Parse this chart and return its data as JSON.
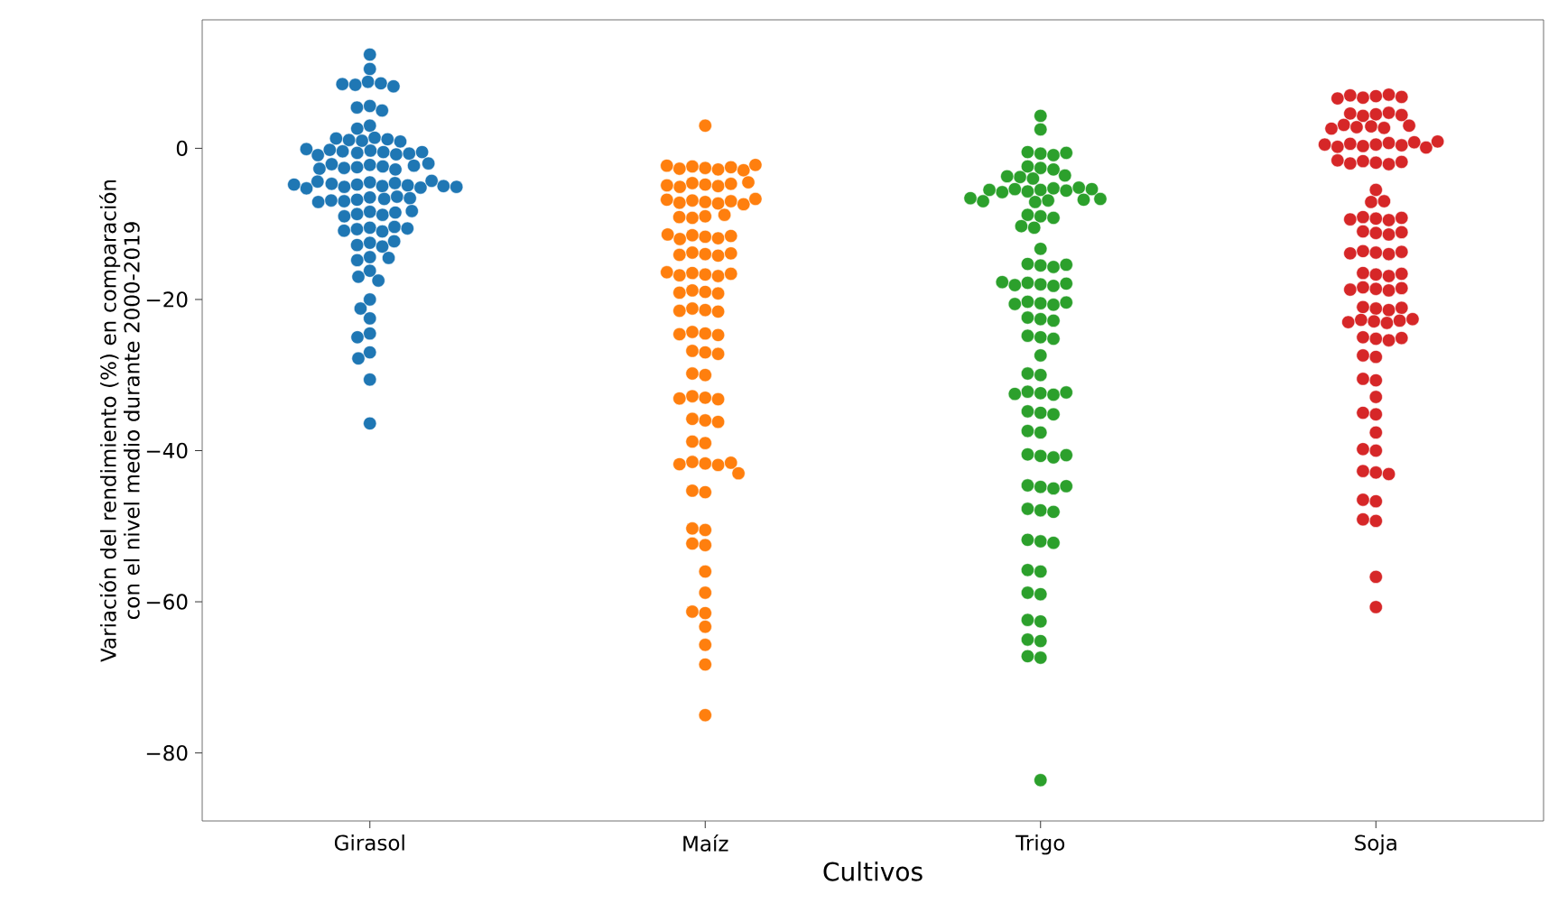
{
  "chart_data": {
    "type": "scatter",
    "xlabel": "Cultivos",
    "ylabel": "Variación del rendimiento (%) en comparación con el nivel medio durante 2000-2019",
    "categories": [
      "Girasol",
      "Maíz",
      "Trigo",
      "Soja"
    ],
    "ylim": [
      -89,
      17
    ],
    "yticks": [
      {
        "value": -80,
        "label": "−80"
      },
      {
        "value": -60,
        "label": "−60"
      },
      {
        "value": -40,
        "label": "−40"
      },
      {
        "value": -20,
        "label": "−20"
      },
      {
        "value": 0,
        "label": "0"
      }
    ],
    "marker": "circle",
    "grid": false,
    "series": [
      {
        "color": "#1f77b4",
        "x": [
          "Girasol",
          "Girasol",
          "Girasol",
          "Girasol",
          "Girasol",
          "Girasol",
          "Girasol",
          "Girasol",
          "Girasol",
          "Girasol",
          "Girasol",
          "Girasol",
          "Girasol",
          "Girasol",
          "Girasol",
          "Girasol",
          "Girasol",
          "Girasol",
          "Girasol",
          "Girasol",
          "Girasol",
          "Girasol",
          "Girasol",
          "Girasol",
          "Girasol",
          "Girasol",
          "Girasol",
          "Girasol",
          "Girasol",
          "Girasol",
          "Girasol",
          "Girasol",
          "Girasol",
          "Girasol",
          "Girasol",
          "Girasol",
          "Girasol",
          "Girasol",
          "Girasol",
          "Girasol",
          "Girasol",
          "Girasol",
          "Girasol",
          "Girasol",
          "Girasol",
          "Girasol",
          "Girasol",
          "Girasol",
          "Girasol",
          "Girasol",
          "Girasol",
          "Girasol",
          "Girasol",
          "Girasol",
          "Girasol",
          "Girasol",
          "Girasol",
          "Girasol",
          "Girasol",
          "Girasol",
          "Girasol",
          "Girasol",
          "Girasol",
          "Girasol",
          "Girasol",
          "Girasol",
          "Girasol",
          "Girasol",
          "Girasol",
          "Girasol",
          "Girasol",
          "Girasol",
          "Girasol",
          "Girasol",
          "Girasol",
          "Girasol",
          "Girasol",
          "Girasol",
          "Girasol",
          "Girasol",
          "Girasol",
          "Girasol",
          "Girasol",
          "Girasol",
          "Girasol",
          "Girasol",
          "Girasol",
          "Girasol",
          "Girasol",
          "Girasol"
        ],
        "values": [
          12.4,
          10.5,
          8.8,
          8.6,
          8.4,
          8.2,
          8.5,
          5.6,
          5.4,
          5.0,
          3.0,
          2.6,
          1.4,
          1.2,
          1.0,
          1.1,
          0.9,
          1.3,
          -0.3,
          -0.5,
          -0.6,
          -0.4,
          -0.8,
          -0.2,
          -0.7,
          -0.5,
          -0.9,
          -0.1,
          -2.2,
          -2.5,
          -2.4,
          -2.6,
          -2.1,
          -2.8,
          -2.3,
          -2.7,
          -2.0,
          -4.5,
          -4.8,
          -5.0,
          -4.6,
          -5.1,
          -4.9,
          -4.7,
          -5.2,
          -4.4,
          -5.3,
          -4.3,
          -5.0,
          -4.8,
          -5.1,
          -6.5,
          -6.8,
          -6.7,
          -7.0,
          -6.4,
          -6.9,
          -6.6,
          -7.1,
          -8.4,
          -8.7,
          -8.8,
          -8.5,
          -9.0,
          -8.3,
          -10.5,
          -10.7,
          -11.0,
          -10.4,
          -10.9,
          -10.6,
          -12.5,
          -12.8,
          -13.0,
          -12.3,
          -14.4,
          -14.8,
          -14.5,
          -16.2,
          -17.0,
          -17.5,
          -20.0,
          -21.2,
          -22.5,
          -24.5,
          -25.0,
          -27.0,
          -27.8,
          -30.6,
          -36.4
        ]
      },
      {
        "color": "#ff7f0e",
        "x": [
          "Maíz",
          "Maíz",
          "Maíz",
          "Maíz",
          "Maíz",
          "Maíz",
          "Maíz",
          "Maíz",
          "Maíz",
          "Maíz",
          "Maíz",
          "Maíz",
          "Maíz",
          "Maíz",
          "Maíz",
          "Maíz",
          "Maíz",
          "Maíz",
          "Maíz",
          "Maíz",
          "Maíz",
          "Maíz",
          "Maíz",
          "Maíz",
          "Maíz",
          "Maíz",
          "Maíz",
          "Maíz",
          "Maíz",
          "Maíz",
          "Maíz",
          "Maíz",
          "Maíz",
          "Maíz",
          "Maíz",
          "Maíz",
          "Maíz",
          "Maíz",
          "Maíz",
          "Maíz",
          "Maíz",
          "Maíz",
          "Maíz",
          "Maíz",
          "Maíz",
          "Maíz",
          "Maíz",
          "Maíz",
          "Maíz",
          "Maíz",
          "Maíz",
          "Maíz",
          "Maíz",
          "Maíz",
          "Maíz",
          "Maíz",
          "Maíz",
          "Maíz",
          "Maíz",
          "Maíz",
          "Maíz",
          "Maíz",
          "Maíz",
          "Maíz",
          "Maíz",
          "Maíz",
          "Maíz",
          "Maíz",
          "Maíz",
          "Maíz",
          "Maíz",
          "Maíz",
          "Maíz",
          "Maíz",
          "Maíz",
          "Maíz",
          "Maíz",
          "Maíz",
          "Maíz",
          "Maíz",
          "Maíz",
          "Maíz",
          "Maíz",
          "Maíz",
          "Maíz",
          "Maíz",
          "Maíz",
          "Maíz",
          "Maíz",
          "Maíz",
          "Maíz"
        ],
        "values": [
          3.0,
          -2.6,
          -2.4,
          -2.8,
          -2.5,
          -2.7,
          -2.3,
          -2.9,
          -2.2,
          -4.8,
          -4.6,
          -5.0,
          -4.7,
          -5.1,
          -4.9,
          -4.5,
          -7.1,
          -6.9,
          -7.3,
          -7.0,
          -7.2,
          -6.8,
          -7.4,
          -6.7,
          -9.0,
          -9.2,
          -8.8,
          -9.1,
          -11.7,
          -11.5,
          -11.9,
          -11.6,
          -12.0,
          -11.4,
          -14.0,
          -13.8,
          -14.2,
          -13.9,
          -14.1,
          -16.7,
          -16.5,
          -16.9,
          -16.6,
          -16.8,
          -16.4,
          -19.0,
          -18.8,
          -19.2,
          -19.1,
          -21.4,
          -21.2,
          -21.6,
          -21.5,
          -24.5,
          -24.3,
          -24.7,
          -24.6,
          -27.0,
          -26.8,
          -27.2,
          -30.0,
          -29.8,
          -33.0,
          -32.8,
          -33.2,
          -33.1,
          -36.0,
          -35.8,
          -36.2,
          -39.0,
          -38.8,
          -41.7,
          -41.5,
          -41.9,
          -41.6,
          -41.8,
          -43.0,
          -45.5,
          -45.3,
          -50.5,
          -50.3,
          -52.5,
          -52.3,
          -56.0,
          -58.8,
          -61.5,
          -61.3,
          -63.3,
          -65.7,
          -68.3,
          -75.0
        ]
      },
      {
        "color": "#2ca02c",
        "x": [
          "Trigo",
          "Trigo",
          "Trigo",
          "Trigo",
          "Trigo",
          "Trigo",
          "Trigo",
          "Trigo",
          "Trigo",
          "Trigo",
          "Trigo",
          "Trigo",
          "Trigo",
          "Trigo",
          "Trigo",
          "Trigo",
          "Trigo",
          "Trigo",
          "Trigo",
          "Trigo",
          "Trigo",
          "Trigo",
          "Trigo",
          "Trigo",
          "Trigo",
          "Trigo",
          "Trigo",
          "Trigo",
          "Trigo",
          "Trigo",
          "Trigo",
          "Trigo",
          "Trigo",
          "Trigo",
          "Trigo",
          "Trigo",
          "Trigo",
          "Trigo",
          "Trigo",
          "Trigo",
          "Trigo",
          "Trigo",
          "Trigo",
          "Trigo",
          "Trigo",
          "Trigo",
          "Trigo",
          "Trigo",
          "Trigo",
          "Trigo",
          "Trigo",
          "Trigo",
          "Trigo",
          "Trigo",
          "Trigo",
          "Trigo",
          "Trigo",
          "Trigo",
          "Trigo",
          "Trigo",
          "Trigo",
          "Trigo",
          "Trigo",
          "Trigo",
          "Trigo",
          "Trigo",
          "Trigo",
          "Trigo",
          "Trigo",
          "Trigo",
          "Trigo",
          "Trigo",
          "Trigo",
          "Trigo",
          "Trigo",
          "Trigo",
          "Trigo",
          "Trigo",
          "Trigo",
          "Trigo",
          "Trigo",
          "Trigo",
          "Trigo",
          "Trigo",
          "Trigo",
          "Trigo",
          "Trigo",
          "Trigo",
          "Trigo",
          "Trigo",
          "Trigo",
          "Trigo",
          "Trigo"
        ],
        "values": [
          4.3,
          2.5,
          -0.7,
          -0.5,
          -0.9,
          -0.6,
          -2.6,
          -2.4,
          -2.8,
          -3.8,
          -3.6,
          -4.0,
          -3.7,
          -5.5,
          -5.3,
          -5.7,
          -5.4,
          -5.6,
          -5.2,
          -5.8,
          -5.5,
          -5.4,
          -6.9,
          -6.7,
          -7.1,
          -6.8,
          -7.0,
          -6.6,
          -9.0,
          -8.8,
          -9.2,
          -10.5,
          -10.3,
          -13.3,
          -15.5,
          -15.3,
          -15.7,
          -15.4,
          -18.0,
          -17.8,
          -18.2,
          -17.9,
          -18.1,
          -17.7,
          -20.5,
          -20.3,
          -20.7,
          -20.4,
          -20.6,
          -22.6,
          -22.4,
          -22.8,
          -25.0,
          -24.8,
          -25.2,
          -27.4,
          -30.0,
          -29.8,
          -32.4,
          -32.2,
          -32.6,
          -32.3,
          -32.5,
          -35.0,
          -34.8,
          -35.2,
          -37.6,
          -37.4,
          -40.7,
          -40.5,
          -40.9,
          -40.6,
          -44.8,
          -44.6,
          -45.0,
          -44.7,
          -47.9,
          -47.7,
          -48.1,
          -52.0,
          -51.8,
          -52.2,
          -56.0,
          -55.8,
          -59.0,
          -58.8,
          -62.6,
          -62.4,
          -65.2,
          -65.0,
          -67.4,
          -67.2,
          -83.6
        ]
      },
      {
        "color": "#d62728",
        "x": [
          "Soja",
          "Soja",
          "Soja",
          "Soja",
          "Soja",
          "Soja",
          "Soja",
          "Soja",
          "Soja",
          "Soja",
          "Soja",
          "Soja",
          "Soja",
          "Soja",
          "Soja",
          "Soja",
          "Soja",
          "Soja",
          "Soja",
          "Soja",
          "Soja",
          "Soja",
          "Soja",
          "Soja",
          "Soja",
          "Soja",
          "Soja",
          "Soja",
          "Soja",
          "Soja",
          "Soja",
          "Soja",
          "Soja",
          "Soja",
          "Soja",
          "Soja",
          "Soja",
          "Soja",
          "Soja",
          "Soja",
          "Soja",
          "Soja",
          "Soja",
          "Soja",
          "Soja",
          "Soja",
          "Soja",
          "Soja",
          "Soja",
          "Soja",
          "Soja",
          "Soja",
          "Soja",
          "Soja",
          "Soja",
          "Soja",
          "Soja",
          "Soja",
          "Soja",
          "Soja",
          "Soja",
          "Soja",
          "Soja",
          "Soja",
          "Soja",
          "Soja",
          "Soja",
          "Soja",
          "Soja",
          "Soja",
          "Soja",
          "Soja",
          "Soja",
          "Soja",
          "Soja",
          "Soja",
          "Soja",
          "Soja",
          "Soja",
          "Soja",
          "Soja",
          "Soja",
          "Soja",
          "Soja",
          "Soja",
          "Soja",
          "Soja",
          "Soja",
          "Soja",
          "Soja",
          "Soja",
          "Soja"
        ],
        "values": [
          6.9,
          6.7,
          7.1,
          6.8,
          7.0,
          6.6,
          4.5,
          4.3,
          4.7,
          4.4,
          4.6,
          2.9,
          2.7,
          3.1,
          2.8,
          3.0,
          2.6,
          0.5,
          0.3,
          0.7,
          0.4,
          0.6,
          0.2,
          0.8,
          0.5,
          0.1,
          0.9,
          -1.9,
          -1.7,
          -2.1,
          -1.8,
          -2.0,
          -1.6,
          -5.5,
          -7.1,
          -7.0,
          -9.3,
          -9.1,
          -9.5,
          -9.2,
          -9.4,
          -11.2,
          -11.0,
          -11.4,
          -11.1,
          -13.8,
          -13.6,
          -14.0,
          -13.7,
          -13.9,
          -16.7,
          -16.5,
          -16.9,
          -16.6,
          -18.6,
          -18.4,
          -18.8,
          -18.5,
          -18.7,
          -21.2,
          -21.0,
          -21.4,
          -21.1,
          -22.9,
          -22.7,
          -23.1,
          -22.8,
          -23.0,
          -22.6,
          -25.2,
          -25.0,
          -25.4,
          -25.1,
          -27.6,
          -27.4,
          -30.7,
          -30.5,
          -32.9,
          -35.2,
          -35.0,
          -37.6,
          -40.0,
          -39.8,
          -42.9,
          -42.7,
          -43.1,
          -46.7,
          -46.5,
          -49.3,
          -49.1,
          -56.7,
          -60.7
        ]
      }
    ]
  }
}
